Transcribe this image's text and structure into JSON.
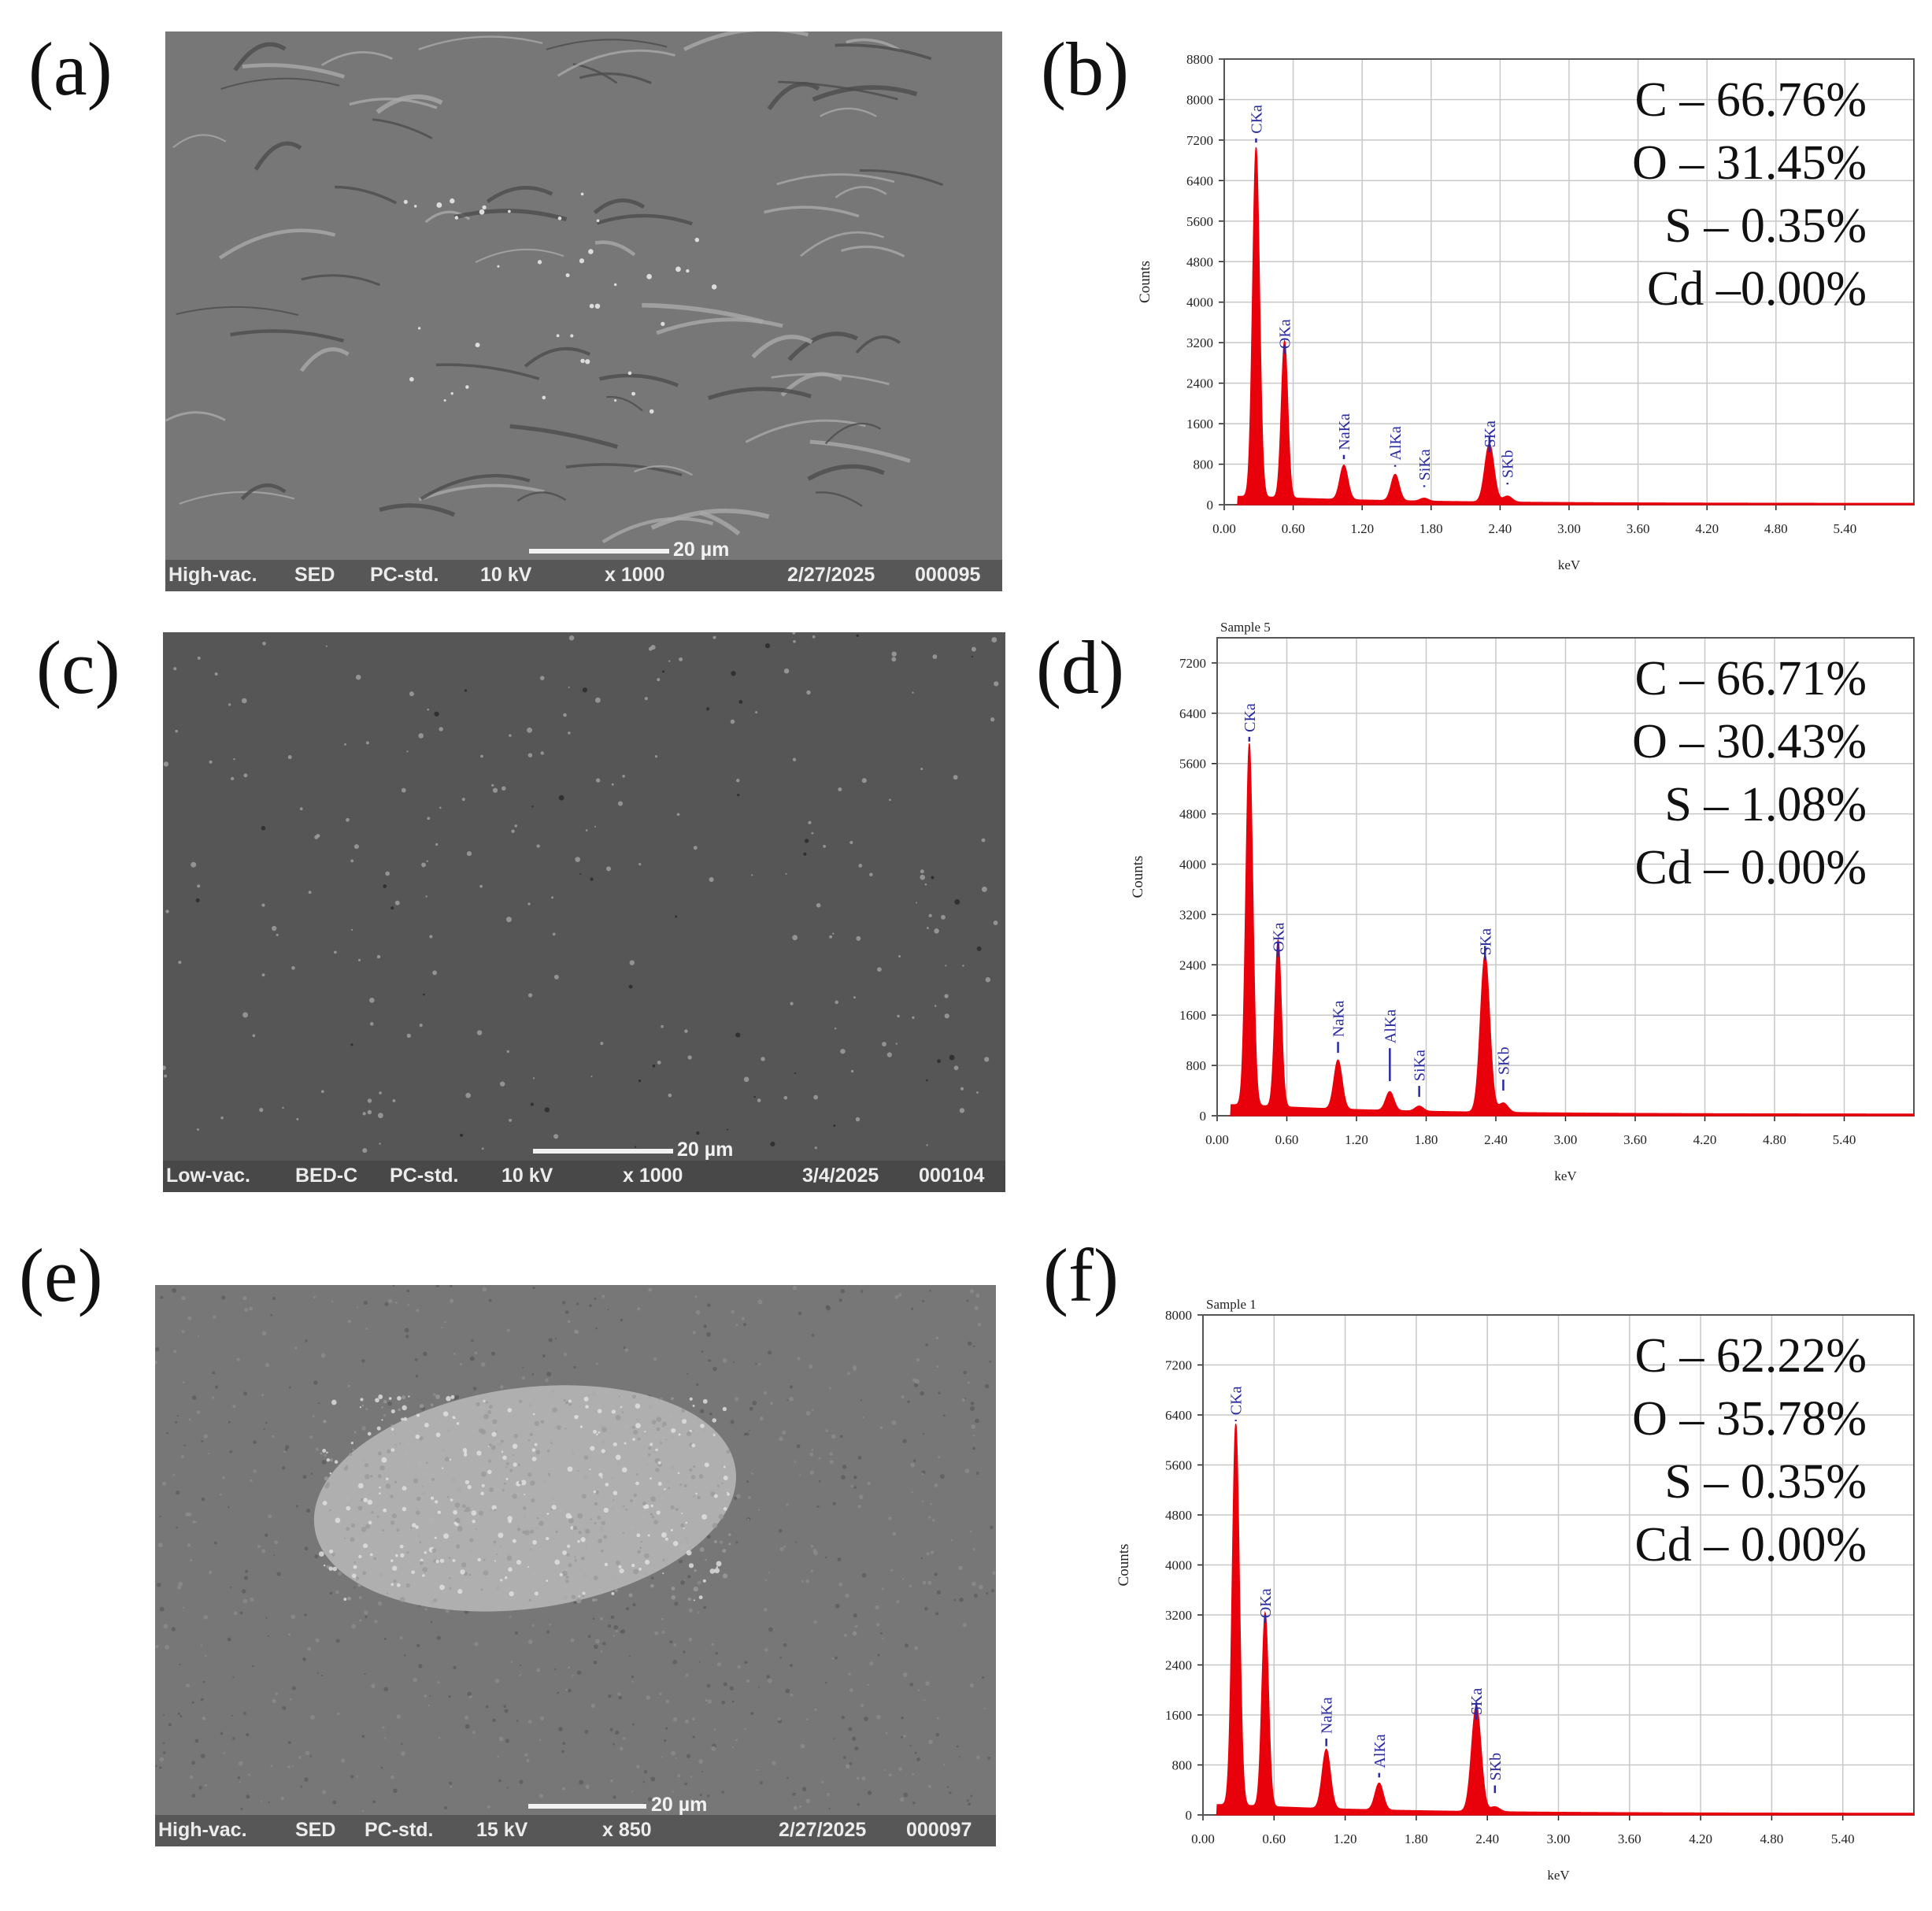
{
  "panel_letters": {
    "a": "(a)",
    "b": "(b)",
    "c": "(c)",
    "d": "(d)",
    "e": "(e)",
    "f": "(f)"
  },
  "sem_images": [
    {
      "vacuum": "High-vac.",
      "detector": "SED",
      "mode": "PC-std.",
      "voltage": "10 kV",
      "magnification": "x 1000",
      "date": "2/27/2025",
      "image_no": "000095",
      "scale": "20 µm",
      "brightness": "mid",
      "morphology": "wrinkled"
    },
    {
      "vacuum": "Low-vac.",
      "detector": "BED-C",
      "mode": "PC-std.",
      "voltage": "10 kV",
      "magnification": "x 1000",
      "date": "3/4/2025",
      "image_no": "000104",
      "scale": "20 µm",
      "brightness": "dark",
      "morphology": "smooth-particles"
    },
    {
      "vacuum": "High-vac.",
      "detector": "SED",
      "mode": "PC-std.",
      "voltage": "15 kV",
      "magnification": "x 850",
      "date": "2/27/2025",
      "image_no": "000097",
      "scale": "20 µm",
      "brightness": "mid",
      "morphology": "bright-cluster"
    }
  ],
  "chart_data": [
    {
      "type": "line",
      "panel": "b",
      "title": "",
      "xlabel": "keV",
      "ylabel": "Counts",
      "xlim": [
        0,
        6.0
      ],
      "ylim": [
        0,
        8800
      ],
      "xticks": [
        "0.00",
        "0.60",
        "1.20",
        "1.80",
        "2.40",
        "3.00",
        "3.60",
        "4.20",
        "4.80",
        "5.40"
      ],
      "yticks": [
        "0",
        "800",
        "1600",
        "2400",
        "3200",
        "4000",
        "4800",
        "5600",
        "6400",
        "7200",
        "8000",
        "8800"
      ],
      "grid": true,
      "line_color": "#e8000b",
      "series": [
        {
          "peaks": [
            [
              0.277,
              6900,
              0.03
            ],
            [
              0.525,
              3100,
              0.028
            ],
            [
              1.041,
              680,
              0.035
            ],
            [
              1.487,
              520,
              0.035
            ],
            [
              1.74,
              60,
              0.035
            ],
            [
              2.307,
              1150,
              0.04
            ],
            [
              2.464,
              120,
              0.04
            ]
          ],
          "background": 140
        }
      ],
      "peak_labels": [
        {
          "label": "CKa",
          "x": 0.277,
          "top": 7700,
          "bottom": 7150
        },
        {
          "label": "OKa",
          "x": 0.525,
          "top": 3450,
          "bottom": 3150
        },
        {
          "label": "NaKa",
          "x": 1.041,
          "top": 1450,
          "bottom": 900
        },
        {
          "label": "AlKa",
          "x": 1.487,
          "top": 1250,
          "bottom": 750
        },
        {
          "label": "SiKa",
          "x": 1.74,
          "top": 850,
          "bottom": 350
        },
        {
          "label": "SKa",
          "x": 2.307,
          "top": 1500,
          "bottom": 1350
        },
        {
          "label": "SKb",
          "x": 2.464,
          "top": 900,
          "bottom": 400
        }
      ],
      "composition": [
        "C – 66.76%",
        "O – 31.45%",
        "S – 0.35%",
        "Cd –0.00%"
      ]
    },
    {
      "type": "line",
      "panel": "d",
      "title": "Sample 5",
      "xlabel": "keV",
      "ylabel": "Counts",
      "xlim": [
        0,
        6.0
      ],
      "ylim": [
        0,
        7600
      ],
      "xticks": [
        "0.00",
        "0.60",
        "1.20",
        "1.80",
        "2.40",
        "3.00",
        "3.60",
        "4.20",
        "4.80",
        "5.40"
      ],
      "yticks": [
        "0",
        "800",
        "1600",
        "2400",
        "3200",
        "4000",
        "4800",
        "5600",
        "6400",
        "7200"
      ],
      "grid": true,
      "line_color": "#e8000b",
      "series": [
        {
          "peaks": [
            [
              0.277,
              5750,
              0.03
            ],
            [
              0.525,
              2650,
              0.028
            ],
            [
              1.041,
              780,
              0.035
            ],
            [
              1.487,
              300,
              0.035
            ],
            [
              1.74,
              80,
              0.035
            ],
            [
              2.307,
              2500,
              0.04
            ],
            [
              2.464,
              150,
              0.04
            ]
          ],
          "background": 150
        }
      ],
      "peak_labels": [
        {
          "label": "CKa",
          "x": 0.277,
          "top": 6400,
          "bottom": 5950
        },
        {
          "label": "OKa",
          "x": 0.525,
          "top": 2900,
          "bottom": 2750
        },
        {
          "label": "NaKa",
          "x": 1.041,
          "top": 1550,
          "bottom": 1000
        },
        {
          "label": "AlKa",
          "x": 1.487,
          "top": 1450,
          "bottom": 550
        },
        {
          "label": "SiKa",
          "x": 1.74,
          "top": 850,
          "bottom": 300
        },
        {
          "label": "SKa",
          "x": 2.307,
          "top": 2850,
          "bottom": 2700
        },
        {
          "label": "SKb",
          "x": 2.464,
          "top": 950,
          "bottom": 400
        }
      ],
      "composition": [
        "C – 66.71%",
        "O – 30.43%",
        "S – 1.08%",
        "Cd – 0.00%"
      ]
    },
    {
      "type": "line",
      "panel": "f",
      "title": "Sample 1",
      "xlabel": "keV",
      "ylabel": "Counts",
      "xlim": [
        0,
        6.0
      ],
      "ylim": [
        0,
        8000
      ],
      "xticks": [
        "0.00",
        "0.60",
        "1.20",
        "1.80",
        "2.40",
        "3.00",
        "3.60",
        "4.20",
        "4.80",
        "5.40"
      ],
      "yticks": [
        "0",
        "800",
        "1600",
        "2400",
        "3200",
        "4000",
        "4800",
        "5600",
        "6400",
        "7200",
        "8000"
      ],
      "grid": true,
      "line_color": "#e8000b",
      "series": [
        {
          "peaks": [
            [
              0.277,
              6100,
              0.03
            ],
            [
              0.525,
              3100,
              0.028
            ],
            [
              1.041,
              950,
              0.035
            ],
            [
              1.487,
              430,
              0.035
            ],
            [
              2.307,
              1700,
              0.04
            ],
            [
              2.464,
              80,
              0.04
            ]
          ],
          "background": 140
        }
      ],
      "peak_labels": [
        {
          "label": "CKa",
          "x": 0.277,
          "top": 6700,
          "bottom": 6300
        },
        {
          "label": "OKa",
          "x": 0.525,
          "top": 3450,
          "bottom": 3200
        },
        {
          "label": "NaKa",
          "x": 1.041,
          "top": 1600,
          "bottom": 1100
        },
        {
          "label": "AlKa",
          "x": 1.487,
          "top": 1050,
          "bottom": 600
        },
        {
          "label": "SKa",
          "x": 2.307,
          "top": 1900,
          "bottom": 1800
        },
        {
          "label": "SKb",
          "x": 2.464,
          "top": 850,
          "bottom": 350
        }
      ],
      "composition": [
        "C – 62.22%",
        "O – 35.78%",
        "S – 0.35%",
        "Cd – 0.00%"
      ]
    }
  ]
}
